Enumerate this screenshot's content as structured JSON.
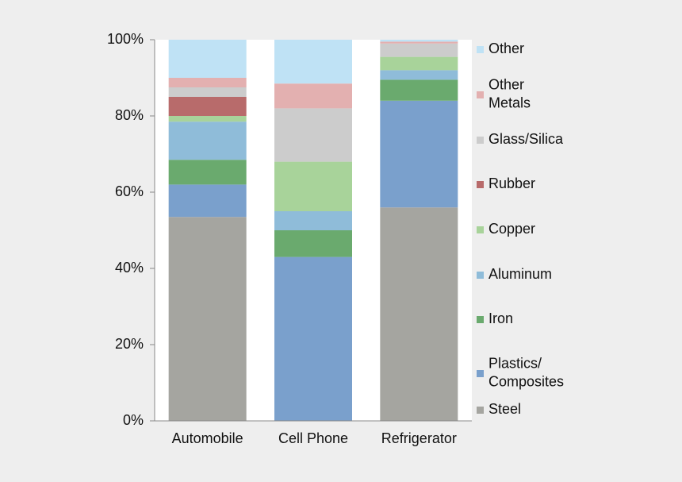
{
  "chart_data": {
    "type": "stacked_bar",
    "categories": [
      "Automobile",
      "Cell Phone",
      "Refrigerator"
    ],
    "series": [
      {
        "name": "Steel",
        "color": "#a5a5a0",
        "values": [
          53.5,
          0,
          56
        ]
      },
      {
        "name": "Plastics/ Composites",
        "color": "#7aa0cc",
        "values": [
          8.5,
          43,
          28
        ]
      },
      {
        "name": "Iron",
        "color": "#6aaa6e",
        "values": [
          6.5,
          7,
          5.5
        ]
      },
      {
        "name": "Aluminum",
        "color": "#8fbcd9",
        "values": [
          10,
          5,
          2.5
        ]
      },
      {
        "name": "Copper",
        "color": "#a8d39a",
        "values": [
          1.5,
          13,
          3.5
        ]
      },
      {
        "name": "Rubber",
        "color": "#b86b6b",
        "values": [
          5,
          0,
          0
        ]
      },
      {
        "name": "Glass/Silica",
        "color": "#cccccc",
        "values": [
          2.5,
          14,
          3.5
        ]
      },
      {
        "name": "Other Metals",
        "color": "#e3b0b0",
        "values": [
          2.5,
          6.5,
          0.5
        ]
      },
      {
        "name": "Other",
        "color": "#bfe2f5",
        "values": [
          10,
          11.5,
          0.5
        ]
      }
    ],
    "ylim": [
      0,
      100
    ],
    "yticks": [
      {
        "value": 0,
        "label": "0%"
      },
      {
        "value": 20,
        "label": "20%"
      },
      {
        "value": 40,
        "label": "40%"
      },
      {
        "value": 60,
        "label": "60%"
      },
      {
        "value": 80,
        "label": "80%"
      },
      {
        "value": 100,
        "label": "100%"
      }
    ],
    "legend": "right"
  }
}
